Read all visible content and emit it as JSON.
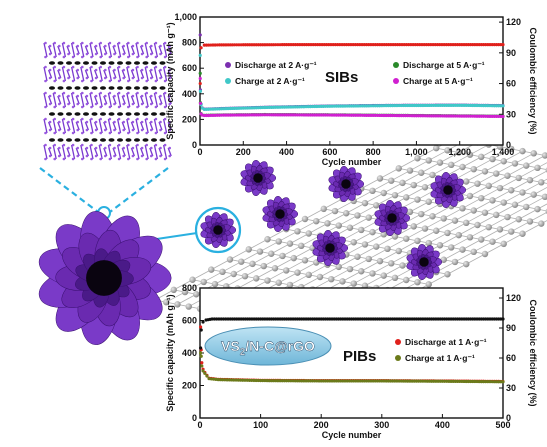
{
  "colors": {
    "red": "#e0201b",
    "black": "#111111",
    "green": "#2a8a2a",
    "purple": "#7b2fb0",
    "cyan": "#40c8c8",
    "magenta": "#d020d0",
    "olive": "#6b7a1a",
    "flower": "#6a2aa8",
    "graphene": "#9a9a9a",
    "dash": "#2ab0e0"
  },
  "illustration": {
    "material_label_main": "VS",
    "material_label_sub": "2",
    "material_label_rest": "/N-C@rGO"
  },
  "chart_data": [
    {
      "type": "scatter",
      "panel_label": "SIBs",
      "xlabel": "Cycle number",
      "ylabel": "Specific capacity (mAh g⁻¹)",
      "y2label": "Coulombic efficiency (%)",
      "xlim": [
        0,
        1400
      ],
      "ylim": [
        0,
        1000
      ],
      "y2lim": [
        0,
        125
      ],
      "x_ticks": [
        0,
        200,
        400,
        600,
        800,
        1000,
        1200,
        1400
      ],
      "x_tick_labels": [
        "0",
        "200",
        "400",
        "600",
        "800",
        "1,000",
        "1,200",
        "1,400"
      ],
      "y_ticks": [
        0,
        200,
        400,
        600,
        800,
        1000
      ],
      "y_tick_labels": [
        "0",
        "200",
        "400",
        "600",
        "800",
        "1,000"
      ],
      "y2_ticks": [
        0,
        30,
        60,
        90,
        120
      ],
      "y2_tick_labels": [
        "0",
        "30",
        "60",
        "90",
        "120"
      ],
      "grid": false,
      "legend": [
        {
          "label": "Discharge at 2 A·g⁻¹",
          "color": "#7b2fb0"
        },
        {
          "label": "Discharge at 5 A·g⁻¹",
          "color": "#2a8a2a"
        },
        {
          "label": "Charge at 2 A·g⁻¹",
          "color": "#40c8c8"
        },
        {
          "label": "Charge at 5 A·g⁻¹",
          "color": "#d020d0"
        }
      ],
      "series": [
        {
          "name": "Discharge at 2 A·g⁻¹",
          "axis": "left",
          "color": "#7b2fb0",
          "x": [
            1,
            2,
            5,
            10,
            20,
            100,
            300,
            600,
            900,
            1200,
            1400
          ],
          "y": [
            860,
            430,
            320,
            290,
            280,
            285,
            295,
            305,
            310,
            312,
            308
          ]
        },
        {
          "name": "Charge at 2 A·g⁻¹",
          "axis": "left",
          "color": "#40c8c8",
          "x": [
            1,
            2,
            5,
            10,
            20,
            100,
            300,
            600,
            900,
            1200,
            1400
          ],
          "y": [
            700,
            420,
            315,
            288,
            278,
            283,
            293,
            303,
            308,
            310,
            306
          ]
        },
        {
          "name": "Discharge at 5 A·g⁻¹",
          "axis": "left",
          "color": "#2a8a2a",
          "x": [
            1,
            2,
            5,
            10,
            20,
            100,
            300,
            600,
            900,
            1200,
            1400
          ],
          "y": [
            560,
            330,
            245,
            235,
            232,
            235,
            238,
            236,
            232,
            228,
            225
          ]
        },
        {
          "name": "Charge at 5 A·g⁻¹",
          "axis": "left",
          "color": "#d020d0",
          "x": [
            1,
            2,
            5,
            10,
            20,
            100,
            300,
            600,
            900,
            1200,
            1400
          ],
          "y": [
            520,
            325,
            243,
            233,
            230,
            233,
            236,
            234,
            230,
            226,
            223
          ]
        },
        {
          "name": "",
          "axis": "right",
          "color": "#e0201b",
          "x": [
            1,
            5,
            20,
            100,
            400,
            800,
            1200,
            1400
          ],
          "y": [
            60,
            95,
            97.5,
            97.8,
            98,
            98,
            98,
            98
          ]
        }
      ]
    },
    {
      "type": "scatter",
      "panel_label": "PIBs",
      "xlabel": "Cycle number",
      "ylabel": "Specific capacity (mAh g⁻¹)",
      "y2label": "Coulombic efficiency (%)",
      "xlim": [
        0,
        500
      ],
      "ylim": [
        0,
        800
      ],
      "y2lim": [
        0,
        130
      ],
      "x_ticks": [
        0,
        100,
        200,
        300,
        400,
        500
      ],
      "x_tick_labels": [
        "0",
        "100",
        "200",
        "300",
        "400",
        "500"
      ],
      "y_ticks": [
        0,
        200,
        400,
        600,
        800
      ],
      "y_tick_labels": [
        "0",
        "200",
        "400",
        "600",
        "800"
      ],
      "y2_ticks": [
        0,
        30,
        60,
        90,
        120
      ],
      "y2_tick_labels": [
        "0",
        "30",
        "60",
        "90",
        "120"
      ],
      "grid": false,
      "legend": [
        {
          "label": "Discharge at 1 A·g⁻¹",
          "color": "#e0201b"
        },
        {
          "label": "Charge at 1 A·g⁻¹",
          "color": "#6b7a1a"
        }
      ],
      "series": [
        {
          "name": "Discharge at 1 A·g⁻¹",
          "axis": "left",
          "color": "#e0201b",
          "x": [
            1,
            2,
            3,
            5,
            8,
            15,
            30,
            100,
            200,
            300,
            400,
            500
          ],
          "y": [
            560,
            420,
            340,
            300,
            280,
            245,
            238,
            232,
            230,
            230,
            228,
            225
          ]
        },
        {
          "name": "Charge at 1 A·g⁻¹",
          "axis": "left",
          "color": "#6b7a1a",
          "x": [
            1,
            2,
            3,
            5,
            8,
            15,
            30,
            100,
            200,
            300,
            400,
            500
          ],
          "y": [
            400,
            380,
            320,
            290,
            275,
            242,
            236,
            230,
            228,
            228,
            226,
            223
          ]
        },
        {
          "name": "",
          "axis": "right",
          "color": "#111111",
          "x": [
            1,
            2,
            5,
            10,
            20,
            50,
            100,
            200,
            300,
            400,
            500
          ],
          "y": [
            70,
            88,
            96,
            98,
            99,
            99,
            99,
            99,
            99,
            99,
            99
          ]
        }
      ]
    }
  ]
}
